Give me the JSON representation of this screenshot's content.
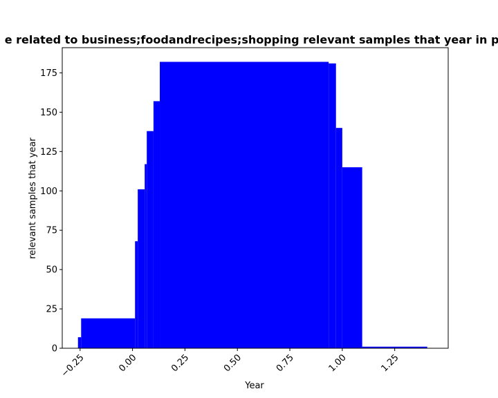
{
  "chart_data": {
    "type": "bar",
    "title": "e related to business;foodandrecipes;shopping relevant samples that year in pr",
    "xlabel": "Year",
    "ylabel": "relevant samples that year",
    "xlim": [
      -0.335,
      1.505
    ],
    "ylim": [
      0,
      191
    ],
    "x_ticks": [
      -0.25,
      0.0,
      0.25,
      0.5,
      0.75,
      1.0,
      1.25
    ],
    "x_tick_labels": [
      "−0.25",
      "0.00",
      "0.25",
      "0.50",
      "0.75",
      "1.00",
      "1.25"
    ],
    "y_ticks": [
      0,
      25,
      50,
      75,
      100,
      125,
      150,
      175
    ],
    "y_tick_labels": [
      "0",
      "25",
      "50",
      "75",
      "100",
      "125",
      "150",
      "175"
    ],
    "bar_color": "#0000ff",
    "bars": [
      {
        "x0": -0.26,
        "x1": -0.245,
        "value": 7
      },
      {
        "x0": -0.245,
        "x1": 0.012,
        "value": 19
      },
      {
        "x0": 0.012,
        "x1": 0.025,
        "value": 68
      },
      {
        "x0": 0.025,
        "x1": 0.058,
        "value": 101
      },
      {
        "x0": 0.058,
        "x1": 0.068,
        "value": 117
      },
      {
        "x0": 0.068,
        "x1": 0.1,
        "value": 138
      },
      {
        "x0": 0.1,
        "x1": 0.13,
        "value": 157
      },
      {
        "x0": 0.13,
        "x1": 0.935,
        "value": 182
      },
      {
        "x0": 0.935,
        "x1": 0.97,
        "value": 181
      },
      {
        "x0": 0.97,
        "x1": 1.0,
        "value": 140
      },
      {
        "x0": 1.0,
        "x1": 1.095,
        "value": 115
      },
      {
        "x0": 1.095,
        "x1": 1.405,
        "value": 1
      }
    ]
  }
}
